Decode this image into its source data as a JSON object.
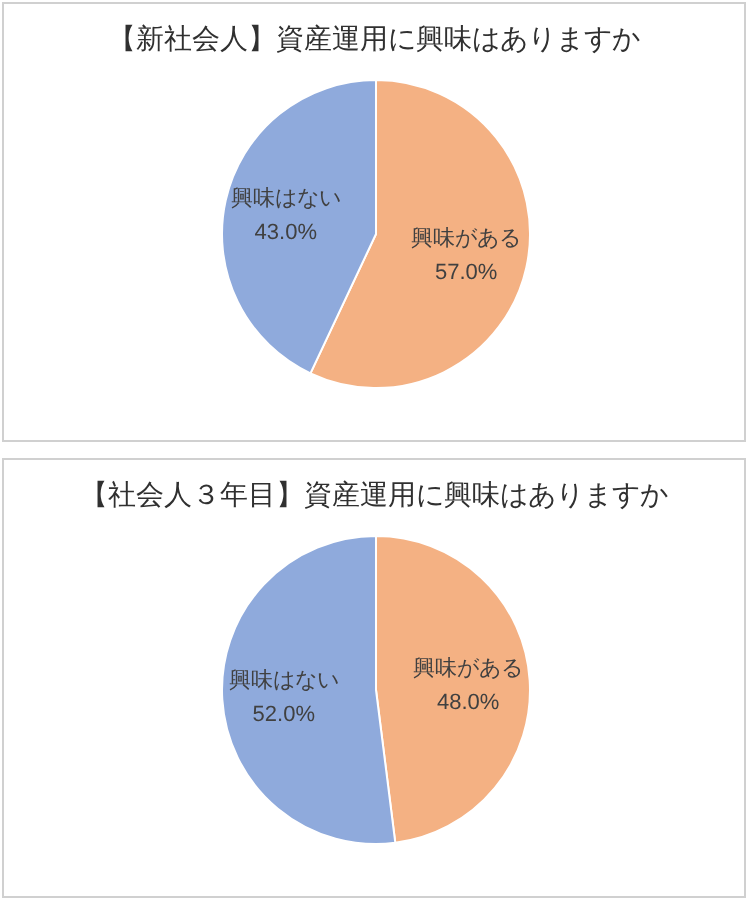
{
  "chart_data": [
    {
      "type": "pie",
      "title": "【新社会人】資産運用に興味はありますか",
      "categories": [
        "興味がある",
        "興味はない"
      ],
      "values": [
        57,
        43
      ],
      "colors": [
        "#f4b183",
        "#8faadc"
      ],
      "value_labels": [
        "57.0%",
        "43.0%"
      ],
      "legend": false
    },
    {
      "type": "pie",
      "title": "【社会人３年目】資産運用に興味はありますか",
      "categories": [
        "興味がある",
        "興味はない"
      ],
      "values": [
        48,
        52
      ],
      "colors": [
        "#f4b183",
        "#8faadc"
      ],
      "value_labels": [
        "48.0%",
        "52.0%"
      ],
      "legend": false
    }
  ]
}
